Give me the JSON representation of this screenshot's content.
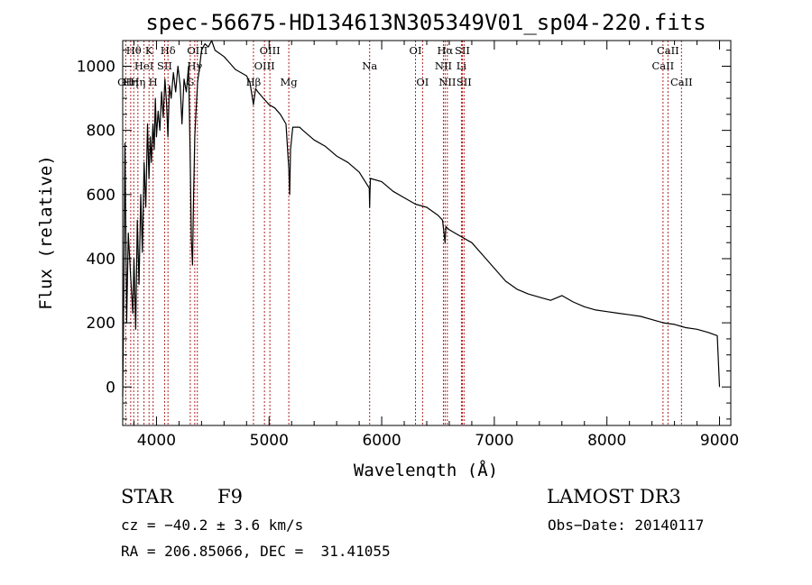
{
  "chart_data": {
    "type": "line",
    "title": "spec-56675-HD134613N305349V01_sp04-220.fits",
    "xlabel": "Wavelength (Å)",
    "ylabel": "Flux (relative)",
    "xlim": [
      3700,
      9100
    ],
    "ylim": [
      -120,
      1080
    ],
    "xticks": [
      4000,
      5000,
      6000,
      7000,
      8000,
      9000
    ],
    "yticks": [
      0,
      200,
      400,
      600,
      800,
      1000
    ],
    "series": [
      {
        "name": "spectrum",
        "x": [
          3700,
          3710,
          3720,
          3735,
          3750,
          3770,
          3790,
          3800,
          3815,
          3830,
          3845,
          3860,
          3875,
          3890,
          3905,
          3920,
          3933,
          3945,
          3955,
          3968,
          3980,
          3990,
          4000,
          4015,
          4030,
          4045,
          4060,
          4075,
          4090,
          4101,
          4115,
          4130,
          4150,
          4170,
          4190,
          4210,
          4226,
          4245,
          4265,
          4285,
          4300,
          4310,
          4320,
          4330,
          4340,
          4350,
          4365,
          4380,
          4400,
          4430,
          4460,
          4490,
          4520,
          4560,
          4600,
          4650,
          4700,
          4750,
          4800,
          4830,
          4861,
          4880,
          4900,
          4950,
          5000,
          5050,
          5100,
          5150,
          5175,
          5183,
          5190,
          5210,
          5270,
          5300,
          5400,
          5500,
          5600,
          5700,
          5800,
          5890,
          5893,
          5896,
          5900,
          6000,
          6100,
          6200,
          6300,
          6400,
          6500,
          6540,
          6563,
          6570,
          6600,
          6700,
          6800,
          6900,
          7000,
          7100,
          7200,
          7300,
          7400,
          7500,
          7600,
          7700,
          7800,
          7900,
          8000,
          8100,
          8200,
          8300,
          8400,
          8500,
          8600,
          8700,
          8800,
          8900,
          8980,
          9000
        ],
        "y": [
          -30,
          300,
          760,
          200,
          480,
          350,
          230,
          400,
          180,
          520,
          320,
          600,
          420,
          700,
          560,
          820,
          650,
          780,
          700,
          820,
          740,
          900,
          780,
          860,
          800,
          920,
          840,
          960,
          880,
          780,
          940,
          900,
          980,
          920,
          1000,
          940,
          820,
          960,
          920,
          1000,
          700,
          460,
          380,
          600,
          780,
          850,
          950,
          990,
          1050,
          1070,
          1060,
          1080,
          1050,
          1040,
          1030,
          1010,
          990,
          980,
          970,
          950,
          880,
          930,
          920,
          900,
          880,
          870,
          850,
          820,
          680,
          600,
          740,
          810,
          810,
          800,
          770,
          750,
          720,
          700,
          670,
          620,
          560,
          610,
          650,
          640,
          610,
          590,
          570,
          560,
          535,
          520,
          450,
          500,
          490,
          470,
          450,
          410,
          370,
          330,
          305,
          290,
          280,
          270,
          285,
          265,
          250,
          240,
          235,
          230,
          225,
          220,
          210,
          200,
          195,
          185,
          180,
          170,
          160,
          0
        ]
      }
    ],
    "spectral_lines": [
      {
        "wl": 3727,
        "label": "OII",
        "row": 3
      },
      {
        "wl": 3771,
        "label": "Hη",
        "row": 3
      },
      {
        "wl": 3798,
        "label": "Hθ",
        "row": 1
      },
      {
        "wl": 3835,
        "label": "Hη",
        "row": 3
      },
      {
        "wl": 3889,
        "label": "HeI",
        "row": 2
      },
      {
        "wl": 3934,
        "label": "K",
        "row": 1
      },
      {
        "wl": 3970,
        "label": "H",
        "row": 3
      },
      {
        "wl": 4072,
        "label": "SII",
        "row": 2
      },
      {
        "wl": 4102,
        "label": "Hδ",
        "row": 1
      },
      {
        "wl": 4300,
        "label": "G",
        "row": 3
      },
      {
        "wl": 4340,
        "label": "Hγ",
        "row": 2
      },
      {
        "wl": 4363,
        "label": "OIII",
        "row": 1
      },
      {
        "wl": 4861,
        "label": "Hβ",
        "row": 3
      },
      {
        "wl": 4959,
        "label": "OIII",
        "row": 2
      },
      {
        "wl": 5007,
        "label": "OIII",
        "row": 1
      },
      {
        "wl": 5175,
        "label": "Mg",
        "row": 3
      },
      {
        "wl": 5893,
        "label": "Na",
        "row": 2
      },
      {
        "wl": 6300,
        "label": "OI",
        "row": 1
      },
      {
        "wl": 6363,
        "label": "OI",
        "row": 3
      },
      {
        "wl": 6548,
        "label": "NII",
        "row": 2
      },
      {
        "wl": 6563,
        "label": "Hα",
        "row": 1
      },
      {
        "wl": 6583,
        "label": "NII",
        "row": 3
      },
      {
        "wl": 6708,
        "label": "Li",
        "row": 2
      },
      {
        "wl": 6716,
        "label": "SII",
        "row": 1
      },
      {
        "wl": 6731,
        "label": "SII",
        "row": 3
      },
      {
        "wl": 8498,
        "label": "CaII",
        "row": 2
      },
      {
        "wl": 8542,
        "label": "CaII",
        "row": 1
      },
      {
        "wl": 8662,
        "label": "CaII",
        "row": 3
      }
    ]
  },
  "info": {
    "object_type": "STAR",
    "subclass": "F9",
    "survey": "LAMOST DR3",
    "redshift": "cz = −40.2 ± 3.6 km/s",
    "obs_date": "Obs−Date: 20140117",
    "coords": "RA = 206.85066, DEC =  31.41055"
  },
  "colors": {
    "line_marker": "#b22222",
    "spectrum": "#000000"
  }
}
